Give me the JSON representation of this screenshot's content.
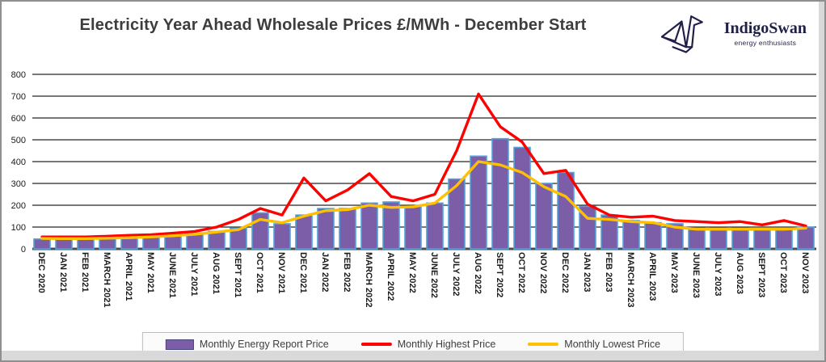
{
  "header": {
    "logo": {
      "name": "IndigoSwan",
      "tagline": "energy enthusiasts",
      "color": "#1e2048"
    }
  },
  "chart_data": {
    "type": "combo",
    "title": "Electricity Year Ahead Wholesale Prices £/MWh - December Start",
    "xlabel": "",
    "ylabel": "",
    "ylim": [
      0,
      800
    ],
    "y_ticks": [
      800,
      700,
      600,
      500,
      400,
      300,
      200,
      100,
      0
    ],
    "grid": true,
    "legend_position": "bottom",
    "categories": [
      "DEC 2020",
      "JAN 2021",
      "FEB 2021",
      "MARCH 2021",
      "APRIL 2021",
      "MAY 2021",
      "JUNE 2021",
      "JULY 2021",
      "AUG 2021",
      "SEPT 2021",
      "OCT 2021",
      "NOV 2021",
      "DEC 2021",
      "JAN 2022",
      "FEB 2022",
      "MARCH 2022",
      "APRIL 2022",
      "MAY 2022",
      "JUNE 2022",
      "JULY 2022",
      "AUG 2022",
      "SEPT 2022",
      "OCT 2022",
      "NOV 2022",
      "DEC 2022",
      "JAN 2023",
      "FEB 2023",
      "MARCH 2023",
      "APRIL 2023",
      "MAY 2023",
      "JUNE 2023",
      "JULY 2023",
      "AUG 2023",
      "SEPT 2023",
      "OCT 2023",
      "NOV 2023"
    ],
    "series": [
      {
        "name": "Monthly Energy Report Price",
        "type": "bar",
        "color": "#7B5EA7",
        "border_color": "#4FA3DC",
        "values": [
          45,
          45,
          45,
          48,
          50,
          55,
          62,
          70,
          80,
          95,
          165,
          115,
          155,
          185,
          185,
          210,
          215,
          195,
          210,
          320,
          425,
          505,
          465,
          300,
          350,
          195,
          155,
          130,
          120,
          115,
          95,
          95,
          95,
          92,
          90,
          100
        ]
      },
      {
        "name": "Monthly Highest Price",
        "type": "line",
        "color": "#FF0000",
        "values": [
          55,
          55,
          55,
          58,
          62,
          65,
          72,
          80,
          100,
          135,
          185,
          155,
          325,
          220,
          270,
          345,
          240,
          220,
          250,
          450,
          710,
          560,
          490,
          345,
          360,
          205,
          155,
          145,
          150,
          130,
          125,
          120,
          125,
          110,
          130,
          105
        ]
      },
      {
        "name": "Monthly Lowest Price",
        "type": "line",
        "color": "#FFC000",
        "values": [
          48,
          47,
          47,
          49,
          51,
          55,
          60,
          67,
          77,
          88,
          135,
          120,
          150,
          175,
          180,
          200,
          190,
          193,
          210,
          290,
          400,
          385,
          350,
          285,
          240,
          140,
          135,
          125,
          120,
          100,
          90,
          90,
          90,
          90,
          90,
          95
        ]
      }
    ]
  }
}
